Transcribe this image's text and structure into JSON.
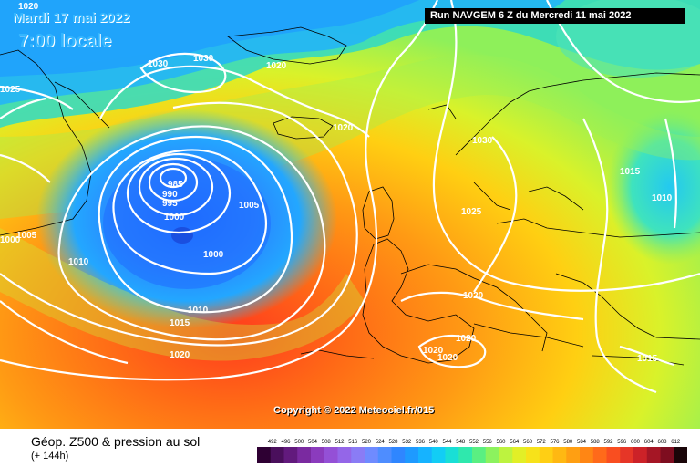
{
  "header": {
    "date": "Mardi 17 mai 2022",
    "local_time": "7:00 locale",
    "run_info": "Run NAVGEM 6 Z du Mercredi 11 mai 2022"
  },
  "footer": {
    "title": "Géop. Z500 & pression au sol",
    "lead_time": "(+ 144h)"
  },
  "copyright": "Copyright © 2022 Meteociel.fr/015",
  "pressure_labels": [
    "1020",
    "1025",
    "1030",
    "1030",
    "1020",
    "1020",
    "1020",
    "1020",
    "985",
    "990",
    "995",
    "1000",
    "1005",
    "1000",
    "1000",
    "1005",
    "1010",
    "1010",
    "1015",
    "1020",
    "1030",
    "1025",
    "1015",
    "1010",
    "1020",
    "1020",
    "1020",
    "1020",
    "1015"
  ],
  "legend": {
    "values": [
      "492",
      "496",
      "500",
      "504",
      "508",
      "512",
      "516",
      "520",
      "524",
      "528",
      "532",
      "536",
      "540",
      "544",
      "548",
      "552",
      "556",
      "560",
      "564",
      "568",
      "572",
      "576",
      "580",
      "584",
      "588",
      "592",
      "596",
      "600",
      "604",
      "608",
      "612"
    ],
    "colors": [
      "#2e0033",
      "#4a0f5c",
      "#621a7d",
      "#7a2aa0",
      "#8b3bbd",
      "#9450d6",
      "#9466e8",
      "#8a7cf5",
      "#6f8bff",
      "#4e8dff",
      "#2f86ff",
      "#1e9aff",
      "#16b3ff",
      "#12cdf5",
      "#19dfd6",
      "#2fe8ad",
      "#5aef82",
      "#8cf25e",
      "#bdf33f",
      "#e2ef27",
      "#f7e21a",
      "#ffcf14",
      "#ffb812",
      "#ff9f12",
      "#ff8614",
      "#ff6a1a",
      "#f94e20",
      "#e63627",
      "#cc2228",
      "#a51625",
      "#7e0d1f",
      "#1a0508"
    ]
  }
}
